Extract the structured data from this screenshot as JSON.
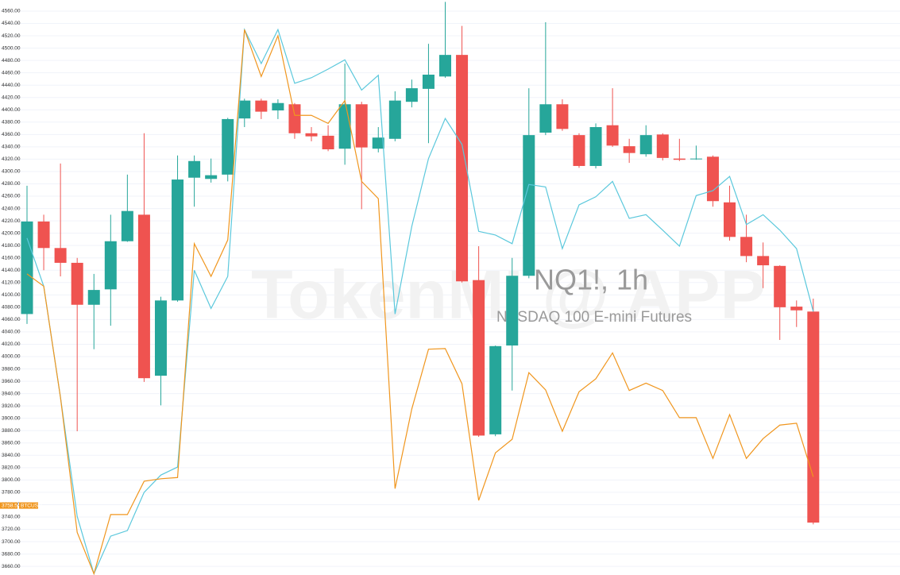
{
  "chart_data": {
    "type": "candlestick",
    "title": "NQ1!, 1h",
    "subtitle": "NASDAQ 100 E-mini Futures",
    "watermark": "TokenMI @ APP",
    "up_color": "#26a69a",
    "down_color": "#ef5350",
    "grid": true,
    "ylim": [
      3646,
      4578
    ],
    "yticks": [
      {
        "value": 3660,
        "label": "3660.00"
      },
      {
        "value": 3680,
        "label": "3680.00"
      },
      {
        "value": 3700,
        "label": "3700.00"
      },
      {
        "value": 3720,
        "label": "3720.00"
      },
      {
        "value": 3740,
        "label": "3740.00"
      },
      {
        "value": 3760,
        "label": "3760.00"
      },
      {
        "value": 3780,
        "label": "3780.00"
      },
      {
        "value": 3800,
        "label": "3800.00"
      },
      {
        "value": 3820,
        "label": "3820.00"
      },
      {
        "value": 3840,
        "label": "3840.00"
      },
      {
        "value": 3860,
        "label": "3860.00"
      },
      {
        "value": 3880,
        "label": "3880.00"
      },
      {
        "value": 3900,
        "label": "3900.00"
      },
      {
        "value": 3920,
        "label": "3920.00"
      },
      {
        "value": 3940,
        "label": "3940.00"
      },
      {
        "value": 3960,
        "label": "3960.00"
      },
      {
        "value": 3980,
        "label": "3980.00"
      },
      {
        "value": 4000,
        "label": "4000.00"
      },
      {
        "value": 4020,
        "label": "4020.00"
      },
      {
        "value": 4040,
        "label": "4040.00"
      },
      {
        "value": 4060,
        "label": "4060.00"
      },
      {
        "value": 4080,
        "label": "4080.00"
      },
      {
        "value": 4100,
        "label": "4100.00"
      },
      {
        "value": 4120,
        "label": "4120.00"
      },
      {
        "value": 4140,
        "label": "4140.00"
      },
      {
        "value": 4160,
        "label": "4160.00"
      },
      {
        "value": 4180,
        "label": "4180.00"
      },
      {
        "value": 4200,
        "label": "4200.00"
      },
      {
        "value": 4220,
        "label": "4220.00"
      },
      {
        "value": 4240,
        "label": "4240.00"
      },
      {
        "value": 4260,
        "label": "4260.00"
      },
      {
        "value": 4280,
        "label": "4280.00"
      },
      {
        "value": 4300,
        "label": "4300.00"
      },
      {
        "value": 4320,
        "label": "4320.00"
      },
      {
        "value": 4340,
        "label": "4340.00"
      },
      {
        "value": 4360,
        "label": "4360.00"
      },
      {
        "value": 4380,
        "label": "4380.00"
      },
      {
        "value": 4400,
        "label": "4400.00"
      },
      {
        "value": 4420,
        "label": "4420.00"
      },
      {
        "value": 4440,
        "label": "4440.00"
      },
      {
        "value": 4460,
        "label": "4460.00"
      },
      {
        "value": 4480,
        "label": "4480.00"
      },
      {
        "value": 4500,
        "label": "4500.00"
      },
      {
        "value": 4520,
        "label": "4520.00"
      },
      {
        "value": 4540,
        "label": "4540.00"
      },
      {
        "value": 4560,
        "label": "4560.00"
      }
    ],
    "open": [
      4069,
      4219,
      4176,
      4152,
      4084,
      4109,
      4187,
      4230,
      3969,
      4091,
      4290,
      4288,
      4295,
      4386,
      4415,
      4399,
      4409,
      4362,
      4358,
      4337,
      4409,
      4337,
      4353,
      4413,
      4434,
      4454,
      4489,
      4124,
      3874,
      4018,
      4131,
      4363,
      4409,
      4359,
      4309,
      4375,
      4341,
      4328,
      4360,
      4321,
      4320,
      4324,
      4250,
      4194,
      4163,
      4147,
      4081,
      4073
    ],
    "high": [
      4277,
      4230,
      4313,
      4160,
      4134,
      4230,
      4295,
      4362,
      4097,
      4326,
      4326,
      4321,
      4387,
      4418,
      4418,
      4417,
      4411,
      4372,
      4375,
      4475,
      4413,
      4372,
      4430,
      4449,
      4507,
      4575,
      4536,
      4179,
      4018,
      4160,
      4435,
      4542,
      4417,
      4362,
      4378,
      4435,
      4353,
      4375,
      4362,
      4353,
      4342,
      4326,
      4277,
      4230,
      4185,
      4148,
      4091,
      4094
    ],
    "low": [
      4053,
      4140,
      4130,
      3879,
      4012,
      4050,
      4186,
      3959,
      3921,
      4089,
      4243,
      4282,
      4284,
      4372,
      4385,
      4385,
      4353,
      4349,
      4333,
      4311,
      4239,
      4331,
      4349,
      4404,
      4346,
      4452,
      4120,
      3870,
      3871,
      3945,
      4127,
      4359,
      4366,
      4306,
      4305,
      4340,
      4314,
      4324,
      4318,
      4317,
      4319,
      4243,
      4188,
      4153,
      4111,
      4027,
      4048,
      3728
    ],
    "close": [
      4219,
      4176,
      4152,
      4084,
      4108,
      4187,
      4236,
      3965,
      4091,
      4287,
      4317,
      4294,
      4385,
      4415,
      4397,
      4411,
      4362,
      4357,
      4336,
      4409,
      4339,
      4355,
      4415,
      4435,
      4457,
      4489,
      4122,
      3872,
      4017,
      4131,
      4359,
      4409,
      4369,
      4309,
      4372,
      4342,
      4330,
      4359,
      4322,
      4319,
      4321,
      4252,
      4194,
      4163,
      4148,
      4080,
      4075,
      3731
    ],
    "series": [
      {
        "color": "#5bc8dc",
        "values": [
          4192,
          4114,
          3934,
          3741,
          3648,
          3709,
          3718,
          3780,
          3808,
          3821,
          4140,
          4078,
          4130,
          4530,
          4475,
          4530,
          4443,
          4452,
          4466,
          4481,
          4432,
          4456,
          4069,
          4211,
          4321,
          4386,
          4344,
          4203,
          4197,
          4183,
          4279,
          4275,
          4175,
          4246,
          4259,
          4284,
          4224,
          4230,
          4205,
          4179,
          4261,
          4269,
          4292,
          4214,
          4230,
          4205,
          4175,
          4073
        ]
      },
      {
        "name": "BTCUSD",
        "color": "#f0961e",
        "values": [
          4134,
          4114,
          3934,
          3715,
          3648,
          3744,
          3744,
          3798,
          3802,
          3804,
          4183,
          4130,
          4189,
          4530,
          4454,
          4520,
          4391,
          4391,
          4378,
          4415,
          4284,
          4256,
          3786,
          3915,
          4012,
          4013,
          3956,
          3767,
          3844,
          3866,
          3974,
          3946,
          3879,
          3943,
          3964,
          4006,
          3945,
          3957,
          3945,
          3901,
          3901,
          3835,
          3906,
          3835,
          3867,
          3889,
          3892,
          3805
        ]
      }
    ],
    "last_label": {
      "value": 3758.56,
      "label": "3758.56"
    }
  }
}
